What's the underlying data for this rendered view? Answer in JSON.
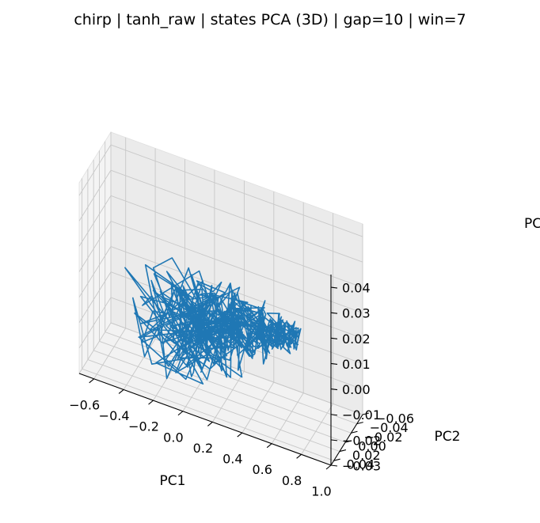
{
  "chart_data": {
    "type": "line",
    "projection": "3d",
    "title": "chirp | tanh_raw | states PCA (3D) | gap=10 | win=7",
    "xlabel": "PC1",
    "ylabel": "PC2",
    "zlabel": "PC",
    "xlim": [
      -0.7,
      1.0
    ],
    "ylim": [
      -0.06,
      0.05
    ],
    "zlim": [
      -0.03,
      0.045
    ],
    "xticks": [
      "−0.6",
      "−0.4",
      "−0.2",
      "0.0",
      "0.2",
      "0.4",
      "0.6",
      "0.8",
      "1.0"
    ],
    "yticks": [
      "−0.06",
      "−0.04",
      "−0.02",
      "0.00",
      "0.02",
      "0.04"
    ],
    "zticks": [
      "−0.03",
      "−0.02",
      "−0.01",
      "0.00",
      "0.01",
      "0.02",
      "0.03",
      "0.04"
    ],
    "grid": true,
    "series_color": "#1f77b4",
    "trajectory_note_points": 520
  }
}
